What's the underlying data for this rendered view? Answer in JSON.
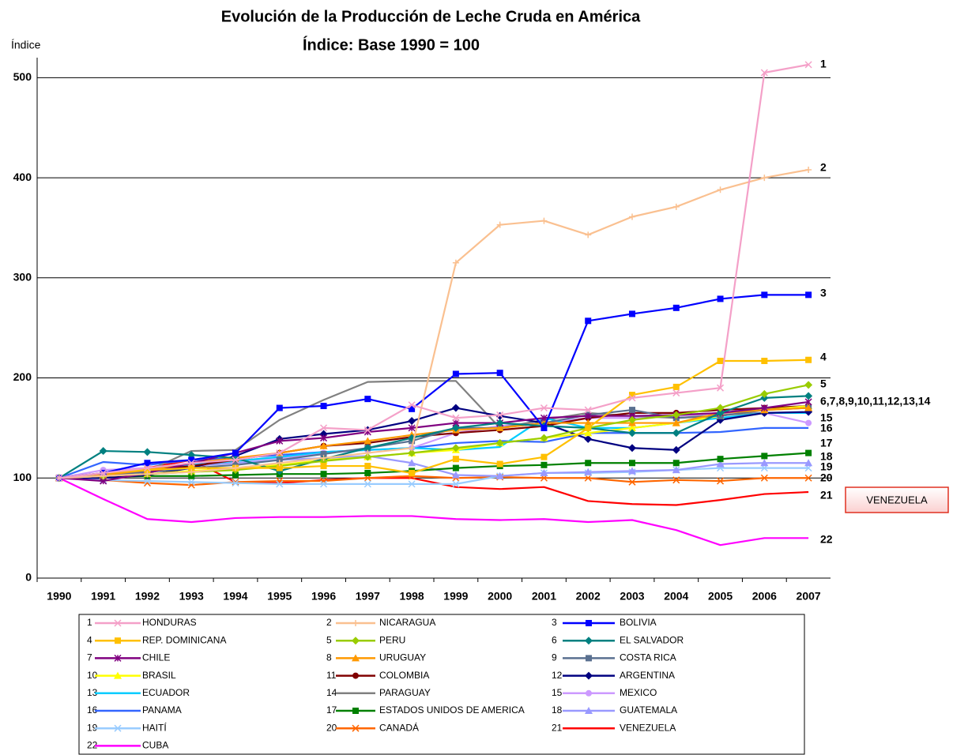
{
  "chart_data": {
    "type": "line",
    "title": "Evolución de la Producción de Leche Cruda en América",
    "subtitle": "Índice:  Base 1990 = 100",
    "y_label": "Índice",
    "categories": [
      "1990",
      "1991",
      "1992",
      "1993",
      "1994",
      "1995",
      "1996",
      "1997",
      "1998",
      "1999",
      "2000",
      "2001",
      "2002",
      "2003",
      "2004",
      "2005",
      "2006",
      "2007"
    ],
    "ylim": [
      0,
      520
    ],
    "yticks": [
      0,
      100,
      200,
      300,
      400,
      500
    ],
    "grid": true,
    "series": [
      {
        "label": "1",
        "name": "HONDURAS",
        "color": "#f4a0c8",
        "marker": "x",
        "values": [
          100,
          105,
          110,
          115,
          118,
          125,
          150,
          148,
          173,
          160,
          163,
          170,
          168,
          180,
          185,
          190,
          505,
          513
        ]
      },
      {
        "label": "2",
        "name": "NICARAGUA",
        "color": "#fac090",
        "marker": "plus",
        "values": [
          100,
          102,
          104,
          106,
          110,
          115,
          120,
          125,
          130,
          315,
          353,
          357,
          343,
          361,
          371,
          388,
          400,
          408
        ]
      },
      {
        "label": "3",
        "name": "BOLIVIA",
        "color": "#0000ff",
        "marker": "square",
        "values": [
          100,
          105,
          115,
          118,
          125,
          170,
          172,
          179,
          169,
          204,
          205,
          150,
          257,
          264,
          270,
          279,
          283,
          283
        ]
      },
      {
        "label": "4",
        "name": "REP. DOMINICANA",
        "color": "#ffc000",
        "marker": "square",
        "values": [
          100,
          105,
          108,
          110,
          110,
          110,
          112,
          112,
          105,
          119,
          114,
          121,
          150,
          183,
          191,
          217,
          217,
          218
        ]
      },
      {
        "label": "5",
        "name": "PERU",
        "color": "#99cc00",
        "marker": "diamond",
        "values": [
          100,
          102,
          104,
          106,
          108,
          112,
          117,
          121,
          125,
          130,
          135,
          140,
          150,
          158,
          163,
          170,
          184,
          193
        ]
      },
      {
        "label": "6",
        "name": "EL SALVADOR",
        "color": "#008080",
        "marker": "diamond",
        "values": [
          100,
          127,
          126,
          123,
          120,
          107,
          119,
          130,
          140,
          150,
          155,
          152,
          150,
          145,
          145,
          165,
          180,
          182
        ]
      },
      {
        "label": "7",
        "name": "CHILE",
        "color": "#800080",
        "marker": "star",
        "values": [
          100,
          97,
          105,
          115,
          125,
          137,
          140,
          146,
          150,
          155,
          155,
          160,
          162,
          162,
          163,
          165,
          170,
          176
        ]
      },
      {
        "label": "8",
        "name": "URUGUAY",
        "color": "#ff9900",
        "marker": "triangle",
        "values": [
          100,
          103,
          108,
          115,
          120,
          125,
          132,
          137,
          143,
          148,
          150,
          155,
          155,
          155,
          155,
          165,
          168,
          170
        ]
      },
      {
        "label": "9",
        "name": "COSTA RICA",
        "color": "#5a7090",
        "marker": "square",
        "values": [
          100,
          103,
          106,
          110,
          113,
          118,
          124,
          130,
          137,
          150,
          150,
          155,
          163,
          168,
          160,
          162,
          168,
          170
        ]
      },
      {
        "label": "10",
        "name": "BRASIL",
        "color": "#ffff00",
        "marker": "triangle",
        "values": [
          100,
          102,
          104,
          107,
          110,
          113,
          118,
          121,
          125,
          128,
          135,
          140,
          145,
          150,
          155,
          162,
          168,
          172
        ]
      },
      {
        "label": "11",
        "name": "COLOMBIA",
        "color": "#800000",
        "marker": "circle",
        "values": [
          100,
          103,
          107,
          112,
          118,
          125,
          132,
          135,
          141,
          145,
          148,
          152,
          160,
          165,
          165,
          168,
          170,
          172
        ]
      },
      {
        "label": "12",
        "name": "ARGENTINA",
        "color": "#000080",
        "marker": "diamond",
        "values": [
          100,
          100,
          103,
          110,
          122,
          139,
          144,
          148,
          157,
          170,
          162,
          155,
          139,
          130,
          128,
          158,
          165,
          166
        ]
      },
      {
        "label": "13",
        "name": "ECUADOR",
        "color": "#00ccff",
        "marker": "none",
        "values": [
          100,
          104,
          108,
          113,
          117,
          121,
          126,
          128,
          130,
          128,
          131,
          160,
          150,
          150,
          155,
          160,
          165,
          165
        ]
      },
      {
        "label": "14",
        "name": "PARAGUAY",
        "color": "#808080",
        "marker": "none",
        "values": [
          100,
          103,
          107,
          127,
          128,
          158,
          178,
          196,
          197,
          197,
          150,
          158,
          165,
          162,
          160,
          163,
          165,
          165
        ]
      },
      {
        "label": "15",
        "name": "MEXICO",
        "color": "#cc99ff",
        "marker": "circle",
        "values": [
          100,
          108,
          110,
          114,
          117,
          120,
          125,
          128,
          130,
          145,
          152,
          155,
          160,
          160,
          162,
          165,
          165,
          155
        ]
      },
      {
        "label": "16",
        "name": "PANAMA",
        "color": "#3366ff",
        "marker": "none",
        "values": [
          100,
          116,
          113,
          118,
          120,
          123,
          126,
          128,
          130,
          135,
          137,
          136,
          145,
          145,
          145,
          146,
          150,
          150
        ]
      },
      {
        "label": "17",
        "name": "ESTADOS UNIDOS DE AMERICA",
        "color": "#008000",
        "marker": "square",
        "values": [
          100,
          101,
          102,
          102,
          103,
          104,
          104,
          105,
          107,
          110,
          112,
          113,
          115,
          115,
          115,
          119,
          122,
          125
        ]
      },
      {
        "label": "18",
        "name": "GUATEMALA",
        "color": "#9999ff",
        "marker": "triangle",
        "values": [
          100,
          104,
          108,
          112,
          115,
          118,
          120,
          122,
          115,
          103,
          102,
          105,
          106,
          107,
          108,
          114,
          115,
          115
        ]
      },
      {
        "label": "19",
        "name": "HAITÍ",
        "color": "#99ccff",
        "marker": "x",
        "values": [
          100,
          98,
          97,
          96,
          95,
          94,
          94,
          94,
          94,
          94,
          102,
          105,
          105,
          106,
          108,
          110,
          110,
          110
        ]
      },
      {
        "label": "20",
        "name": "CANADÁ",
        "color": "#ff6600",
        "marker": "x",
        "values": [
          100,
          98,
          95,
          93,
          96,
          97,
          97,
          100,
          102,
          100,
          101,
          100,
          100,
          96,
          98,
          97,
          100,
          100
        ]
      },
      {
        "label": "21",
        "name": "VENEZUELA",
        "color": "#ff0000",
        "marker": "none",
        "values": [
          100,
          100,
          110,
          118,
          96,
          95,
          98,
          100,
          100,
          91,
          89,
          91,
          77,
          74,
          73,
          78,
          84,
          86
        ]
      },
      {
        "label": "22",
        "name": "CUBA",
        "color": "#ff00ff",
        "marker": "none",
        "values": [
          100,
          79,
          59,
          56,
          60,
          61,
          61,
          62,
          62,
          59,
          58,
          59,
          56,
          58,
          48,
          33,
          40,
          40
        ]
      }
    ],
    "end_labels": [
      "1",
      "2",
      "3",
      "4",
      "5",
      "6,7,8,9,10,11,12,13,14",
      "15",
      "16",
      "17",
      "18",
      "19",
      "20",
      "21",
      "22"
    ],
    "callout": "VENEZUELA"
  }
}
